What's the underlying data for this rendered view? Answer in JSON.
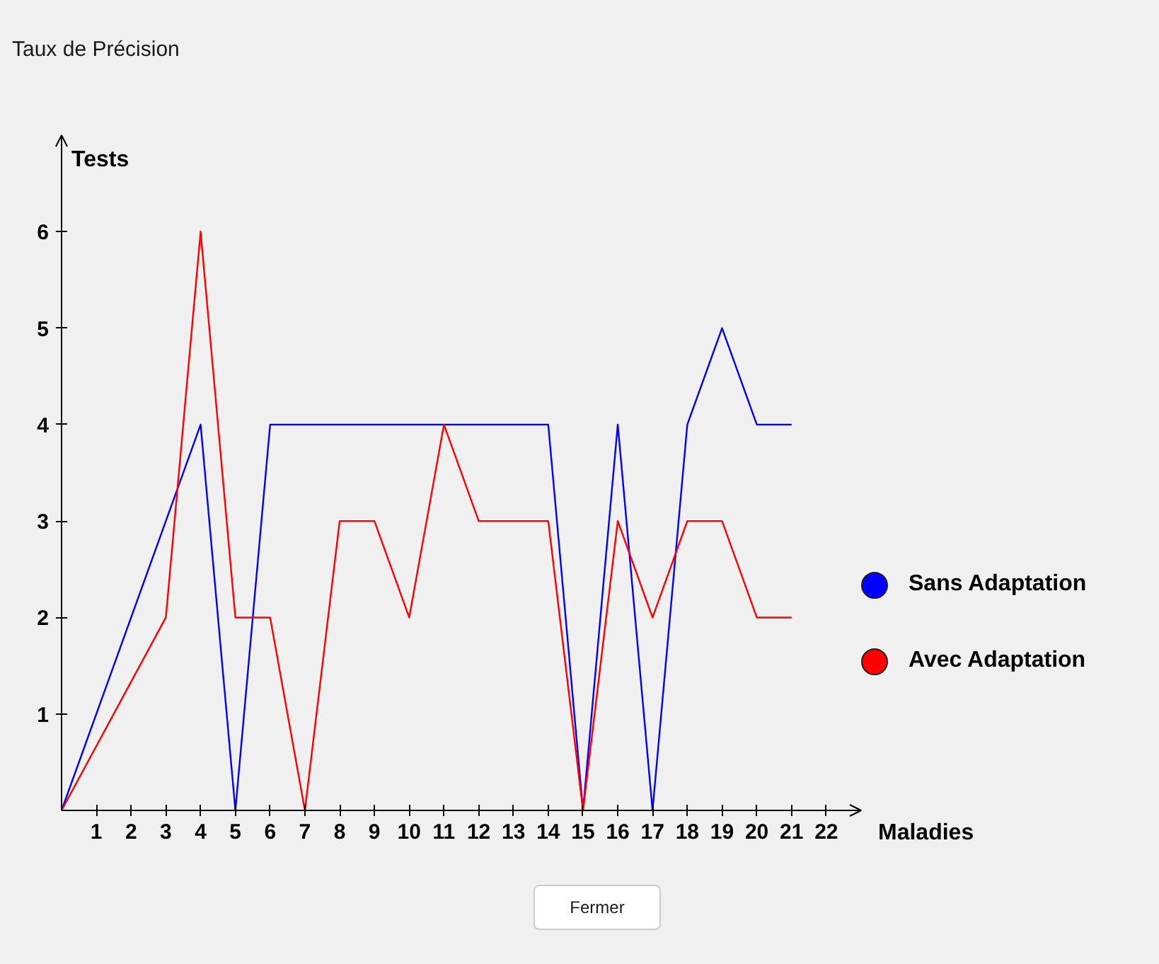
{
  "chart_data": {
    "type": "line",
    "title": "Taux de Précision",
    "xlabel": "Maladies",
    "ylabel": "Tests",
    "x": [
      0,
      3,
      4,
      5,
      6,
      7,
      8,
      9,
      10,
      11,
      12,
      13,
      14,
      15,
      16,
      17,
      18,
      19,
      20,
      21
    ],
    "series": [
      {
        "name": "Sans Adaptation",
        "color": "#0000ff",
        "values": [
          0,
          3,
          4,
          0,
          4,
          4,
          4,
          4,
          4,
          4,
          4,
          4,
          4,
          0,
          4,
          0,
          4,
          5,
          4,
          4
        ]
      },
      {
        "name": "Avec Adaptation",
        "color": "#ff0000",
        "values": [
          0,
          2,
          6,
          2,
          2,
          0,
          3,
          3,
          2,
          4,
          3,
          3,
          3,
          0,
          3,
          2,
          3,
          3,
          2,
          2
        ]
      }
    ],
    "xlim": [
      0,
      23
    ],
    "ylim": [
      0,
      7
    ],
    "xticks": [
      1,
      2,
      3,
      4,
      5,
      6,
      7,
      8,
      9,
      10,
      11,
      12,
      13,
      14,
      15,
      16,
      17,
      18,
      19,
      20,
      21,
      22
    ],
    "yticks": [
      1,
      2,
      3,
      4,
      5,
      6
    ],
    "grid": false,
    "legend": "right",
    "line_style": "solid",
    "annotations": [
      "Fermer"
    ]
  }
}
